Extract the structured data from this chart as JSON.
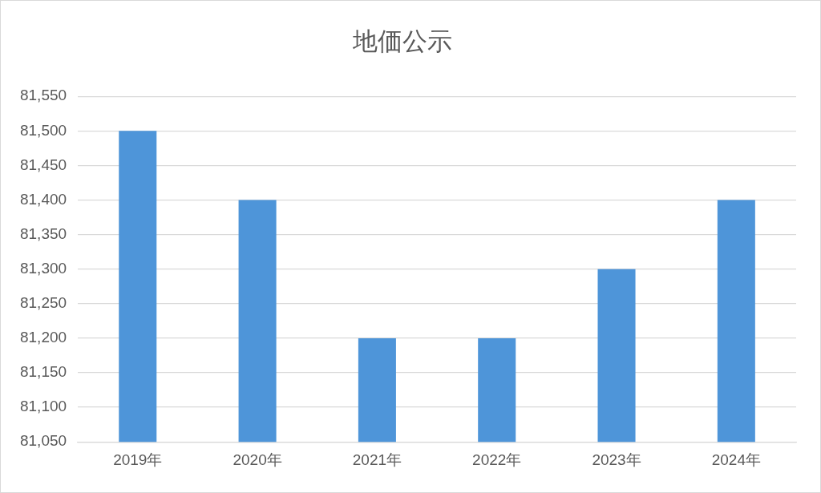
{
  "chart_data": {
    "type": "bar",
    "title": "地価公示",
    "categories": [
      "2019年",
      "2020年",
      "2021年",
      "2022年",
      "2023年",
      "2024年"
    ],
    "values": [
      81500,
      81400,
      81200,
      81200,
      81300,
      81400
    ],
    "color": "#4e95d9",
    "ylim": [
      81050,
      81550
    ],
    "yticks": [
      {
        "value": 81050,
        "label": "81,050"
      },
      {
        "value": 81100,
        "label": "81,100"
      },
      {
        "value": 81150,
        "label": "81,150"
      },
      {
        "value": 81200,
        "label": "81,200"
      },
      {
        "value": 81250,
        "label": "81,250"
      },
      {
        "value": 81300,
        "label": "81,300"
      },
      {
        "value": 81350,
        "label": "81,350"
      },
      {
        "value": 81400,
        "label": "81,400"
      },
      {
        "value": 81450,
        "label": "81,450"
      },
      {
        "value": 81500,
        "label": "81,500"
      },
      {
        "value": 81550,
        "label": "81,550"
      }
    ],
    "grid": "y",
    "legend": false
  }
}
